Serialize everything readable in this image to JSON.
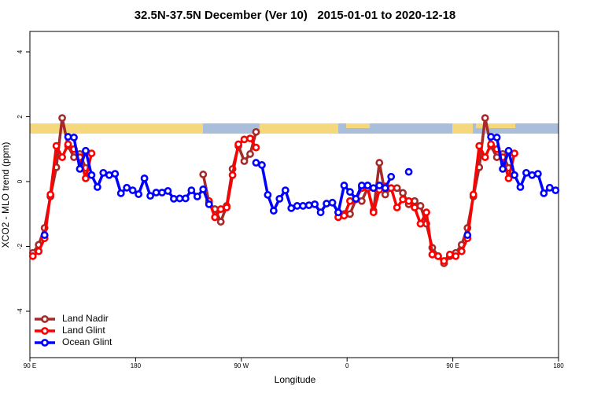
{
  "chart_data": {
    "type": "line",
    "title": "32.5N-37.5N December (Ver 10)   2015-01-01 to 2020-12-18",
    "x_label": "Longitude",
    "y_label": "XCO2 - MLO trend (ppm)",
    "xlim": [
      90,
      540
    ],
    "ylim": [
      -5.43,
      4.63
    ],
    "xticks": [
      {
        "value": 90,
        "label": "90 E"
      },
      180,
      {
        "value": 270,
        "label": "90 W"
      },
      {
        "value": 360,
        "label": "0"
      },
      {
        "value": 450,
        "label": "90 E"
      },
      {
        "value": 540,
        "label": "180"
      }
    ],
    "yticks": [
      -4,
      -2,
      0,
      2,
      4
    ],
    "grid": false,
    "legend": "bottom-left",
    "x": [
      92.5,
      97.5,
      102.5,
      107.5,
      112.5,
      117.5,
      122.5,
      127.5,
      132.5,
      137.5,
      142.5,
      147.5,
      152.5,
      157.5,
      162.5,
      167.5,
      172.5,
      177.5,
      182.5,
      187.5,
      192.5,
      197.5,
      202.5,
      207.5,
      212.5,
      217.5,
      222.5,
      227.5,
      232.5,
      237.5,
      242.5,
      247.5,
      252.5,
      257.5,
      262.5,
      267.5,
      272.5,
      277.5,
      282.5,
      287.5,
      292.5,
      297.5,
      302.5,
      307.5,
      312.5,
      317.5,
      322.5,
      327.5,
      332.5,
      337.5,
      342.5,
      347.5,
      352.5,
      357.5,
      362.5,
      367.5,
      372.5,
      377.5,
      382.5,
      387.5,
      392.5,
      397.5,
      402.5,
      407.5,
      412.5,
      417.5,
      422.5,
      427.5,
      432.5,
      437.5,
      442.5,
      447.5,
      452.5,
      457.5,
      462.5,
      467.5,
      472.5,
      477.5,
      482.5,
      487.5,
      492.5,
      497.5,
      502.5,
      507.5,
      512.5,
      517.5,
      522.5,
      527.5,
      532.5,
      537.5
    ],
    "series": [
      {
        "name": "Land Nadir",
        "color": "#a52a2a",
        "values": [
          -2.2,
          -1.95,
          -1.43,
          -0.46,
          0.44,
          1.96,
          1.1,
          0.75,
          0.85,
          0.42,
          null,
          null,
          null,
          null,
          null,
          null,
          null,
          null,
          null,
          null,
          null,
          null,
          null,
          null,
          null,
          null,
          null,
          null,
          null,
          0.22,
          -0.65,
          -0.85,
          -1.24,
          -0.75,
          0.39,
          1.1,
          0.63,
          0.85,
          1.53,
          null,
          null,
          null,
          null,
          null,
          null,
          null,
          null,
          null,
          null,
          null,
          null,
          null,
          -0.95,
          -1.0,
          -1.0,
          -0.55,
          -0.6,
          -0.2,
          -0.9,
          0.58,
          -0.4,
          -0.2,
          -0.2,
          -0.35,
          -0.7,
          -0.6,
          -0.75,
          -1.3,
          -2.04,
          -2.3,
          -2.52,
          -2.3,
          -2.2,
          -1.95,
          -1.43,
          -0.46,
          0.44,
          1.96,
          1.1,
          0.75,
          0.85,
          0.42,
          null,
          null,
          null,
          null,
          null,
          null,
          null,
          null
        ]
      },
      {
        "name": "Land Glint",
        "color": "#ff0000",
        "values": [
          -2.3,
          -2.15,
          -1.75,
          -0.4,
          1.1,
          0.75,
          1.15,
          1.0,
          0.75,
          0.1,
          0.87,
          null,
          null,
          null,
          null,
          null,
          null,
          null,
          null,
          null,
          null,
          null,
          null,
          null,
          null,
          null,
          null,
          null,
          null,
          null,
          -0.6,
          -1.1,
          -0.85,
          -0.8,
          0.2,
          1.15,
          1.3,
          1.33,
          1.05,
          null,
          null,
          null,
          null,
          null,
          null,
          null,
          null,
          null,
          null,
          null,
          null,
          null,
          -1.1,
          -1.05,
          -0.6,
          -0.55,
          -0.2,
          -0.2,
          -0.95,
          -0.25,
          -0.15,
          -0.2,
          -0.8,
          -0.55,
          -0.6,
          -0.8,
          -1.3,
          -0.95,
          -2.25,
          -2.3,
          -2.45,
          -2.25,
          -2.3,
          -2.15,
          -1.75,
          -0.4,
          1.1,
          0.75,
          1.15,
          1.0,
          0.75,
          0.1,
          0.87,
          null,
          null,
          null,
          null,
          null,
          null,
          null
        ]
      },
      {
        "name": "Ocean Glint",
        "color": "#0000ff",
        "values": [
          null,
          null,
          -1.65,
          null,
          null,
          null,
          1.38,
          1.36,
          0.39,
          0.95,
          0.2,
          -0.17,
          0.27,
          0.2,
          0.24,
          -0.36,
          -0.19,
          -0.27,
          -0.39,
          0.1,
          -0.44,
          -0.34,
          -0.34,
          -0.29,
          -0.53,
          -0.52,
          -0.52,
          -0.27,
          -0.46,
          -0.24,
          -0.7,
          null,
          null,
          null,
          null,
          null,
          null,
          null,
          0.58,
          0.51,
          -0.41,
          -0.9,
          -0.53,
          -0.27,
          -0.82,
          -0.75,
          -0.75,
          -0.73,
          -0.7,
          -0.95,
          -0.68,
          -0.65,
          -0.95,
          -0.12,
          -0.32,
          -0.53,
          -0.12,
          -0.12,
          -0.2,
          -0.12,
          -0.2,
          0.15,
          null,
          null,
          0.3,
          null,
          null,
          null,
          null,
          null,
          null,
          null,
          null,
          null,
          -1.65,
          null,
          null,
          null,
          1.38,
          1.36,
          0.39,
          0.95,
          0.2,
          -0.17,
          0.27,
          0.2,
          0.24,
          -0.36,
          -0.19,
          -0.27
        ]
      }
    ]
  }
}
